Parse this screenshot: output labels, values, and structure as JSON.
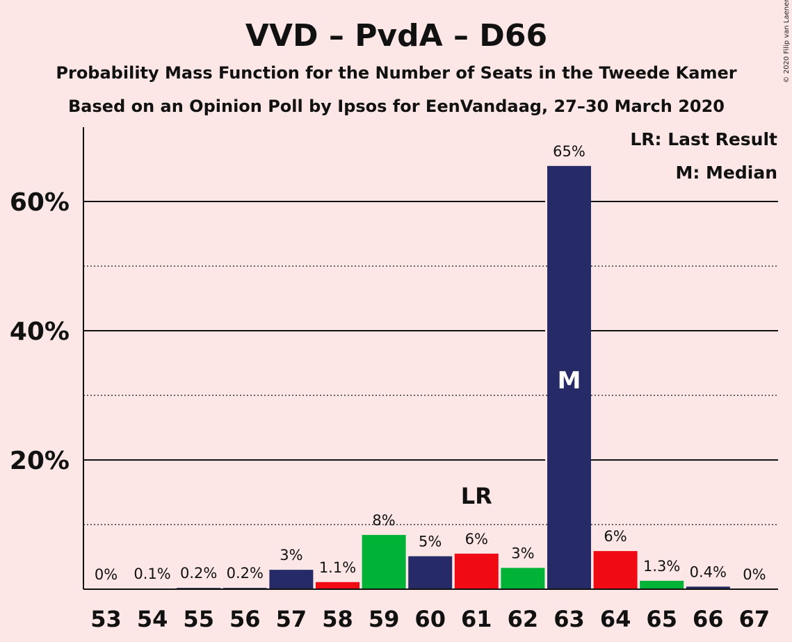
{
  "chart_data": {
    "type": "bar",
    "title": "VVD – PvdA – D66",
    "subtitle_1": "Probability Mass Function for the Number of Seats in the Tweede Kamer",
    "subtitle_2": "Based on an Opinion Poll by Ipsos for EenVandaag, 27–30 March 2020",
    "copyright": "© 2020 Filip van Laenen",
    "xlabel": "",
    "ylabel": "",
    "ylim": [
      0,
      71
    ],
    "y_ticks": [
      {
        "value": 20,
        "label": "20%"
      },
      {
        "value": 40,
        "label": "40%"
      },
      {
        "value": 60,
        "label": "60%"
      }
    ],
    "y_dotted_gridlines": [
      10,
      30,
      50
    ],
    "legend": {
      "position": "top-right",
      "last_result": "LR: Last Result",
      "median": "M: Median"
    },
    "last_result_marker": {
      "seats": 61,
      "label": "LR"
    },
    "median_marker": {
      "seats": 63,
      "label": "M"
    },
    "colors": {
      "navy": "#262a66",
      "red": "#f00a14",
      "green": "#00b337",
      "background": "#fce6e6"
    },
    "bars": [
      {
        "seats": "53",
        "value": 0,
        "label": "0%",
        "color": "navy"
      },
      {
        "seats": "54",
        "value": 0.1,
        "label": "0.1%",
        "color": "navy"
      },
      {
        "seats": "55",
        "value": 0.2,
        "label": "0.2%",
        "color": "navy"
      },
      {
        "seats": "56",
        "value": 0.2,
        "label": "0.2%",
        "color": "navy"
      },
      {
        "seats": "57",
        "value": 3,
        "label": "3%",
        "color": "navy"
      },
      {
        "seats": "58",
        "value": 1.1,
        "label": "1.1%",
        "color": "red"
      },
      {
        "seats": "59",
        "value": 8.4,
        "label": "8%",
        "color": "green"
      },
      {
        "seats": "60",
        "value": 5.1,
        "label": "5%",
        "color": "navy"
      },
      {
        "seats": "61",
        "value": 5.5,
        "label": "6%",
        "color": "red"
      },
      {
        "seats": "62",
        "value": 3.3,
        "label": "3%",
        "color": "green"
      },
      {
        "seats": "63",
        "value": 65.5,
        "label": "65%",
        "color": "navy"
      },
      {
        "seats": "64",
        "value": 5.9,
        "label": "6%",
        "color": "red"
      },
      {
        "seats": "65",
        "value": 1.3,
        "label": "1.3%",
        "color": "green"
      },
      {
        "seats": "66",
        "value": 0.4,
        "label": "0.4%",
        "color": "navy"
      },
      {
        "seats": "67",
        "value": 0,
        "label": "0%",
        "color": "navy"
      }
    ]
  }
}
